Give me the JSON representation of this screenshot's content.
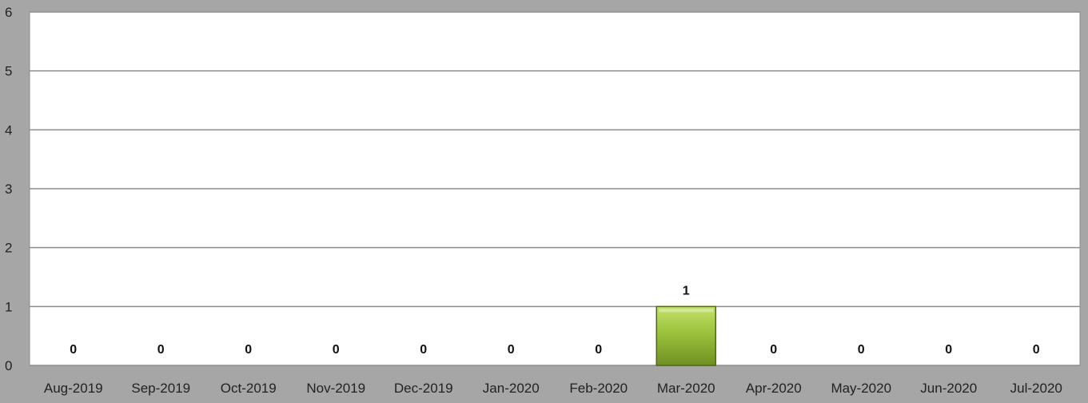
{
  "chart_data": {
    "type": "bar",
    "categories": [
      "Aug-2019",
      "Sep-2019",
      "Oct-2019",
      "Nov-2019",
      "Dec-2019",
      "Jan-2020",
      "Feb-2020",
      "Mar-2020",
      "Apr-2020",
      "May-2020",
      "Jun-2020",
      "Jul-2020"
    ],
    "values": [
      0,
      0,
      0,
      0,
      0,
      0,
      0,
      1,
      0,
      0,
      0,
      0
    ],
    "data_labels": [
      "0",
      "0",
      "0",
      "0",
      "0",
      "0",
      "0",
      "1",
      "0",
      "0",
      "0",
      "0"
    ],
    "title": "",
    "xlabel": "",
    "ylabel": "",
    "ylim": [
      0,
      6
    ],
    "yticks": [
      "0",
      "1",
      "2",
      "3",
      "4",
      "5",
      "6"
    ],
    "grid": true,
    "legend": "none",
    "colors": {
      "bar_light": "#c3e06b",
      "bar_mid": "#9bc23c",
      "bar_dark": "#6f8f22",
      "bar_border": "#4f6a15",
      "plot_background": "#ffffff",
      "outer_background": "#a6a6a6",
      "gridline": "#8c8c8c"
    }
  }
}
